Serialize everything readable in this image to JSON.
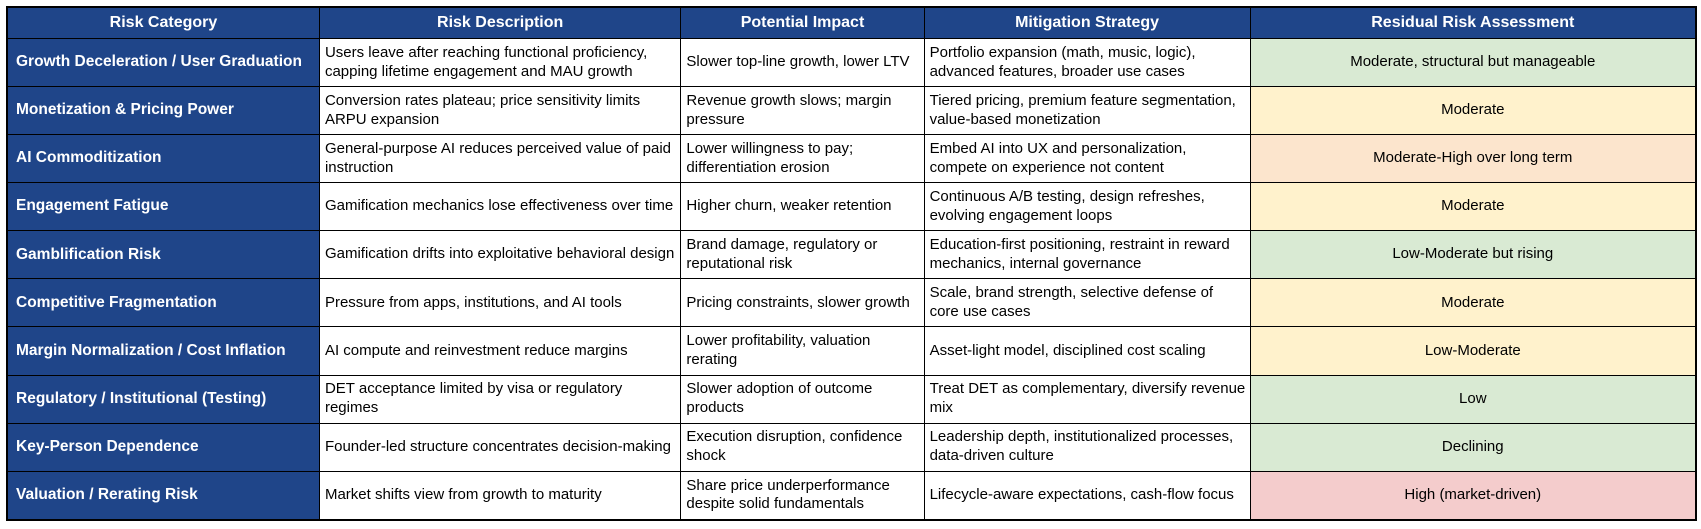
{
  "table": {
    "columns": [
      "Risk Category",
      "Risk Description",
      "Potential Impact",
      "Mitigation Strategy",
      "Residual Risk Assessment"
    ],
    "rows": [
      {
        "category": "Growth Deceleration / User Graduation",
        "description": "Users leave after reaching functional proficiency, capping lifetime engagement and MAU growth",
        "impact": "Slower top-line growth, lower LTV",
        "mitigation": "Portfolio expansion (math, music, logic), advanced features, broader use cases",
        "residual": "Moderate, structural but manageable",
        "residual_color": "green"
      },
      {
        "category": "Monetization & Pricing Power",
        "description": "Conversion rates plateau; price sensitivity limits ARPU expansion",
        "impact": "Revenue growth slows; margin pressure",
        "mitigation": "Tiered pricing, premium feature segmentation, value-based monetization",
        "residual": "Moderate",
        "residual_color": "yellow"
      },
      {
        "category": "AI Commoditization",
        "description": "General-purpose AI reduces perceived value of paid instruction",
        "impact": "Lower willingness to pay; differentiation erosion",
        "mitigation": "Embed AI into UX and personalization, compete on experience not content",
        "residual": "Moderate-High over long term",
        "residual_color": "orange"
      },
      {
        "category": "Engagement Fatigue",
        "description": "Gamification mechanics lose effectiveness over time",
        "impact": "Higher churn, weaker retention",
        "mitigation": "Continuous A/B testing, design refreshes, evolving engagement loops",
        "residual": "Moderate",
        "residual_color": "yellow"
      },
      {
        "category": "Gamblification Risk",
        "description": "Gamification drifts into exploitative behavioral design",
        "impact": "Brand damage, regulatory or reputational risk",
        "mitigation": "Education-first positioning, restraint in reward mechanics, internal governance",
        "residual": "Low-Moderate but rising",
        "residual_color": "green"
      },
      {
        "category": "Competitive Fragmentation",
        "description": "Pressure from apps, institutions, and AI tools",
        "impact": "Pricing constraints, slower growth",
        "mitigation": "Scale, brand strength, selective defense of core use cases",
        "residual": "Moderate",
        "residual_color": "yellow"
      },
      {
        "category": "Margin Normalization / Cost Inflation",
        "description": "AI compute and reinvestment reduce margins",
        "impact": "Lower profitability, valuation rerating",
        "mitigation": "Asset-light model, disciplined cost scaling",
        "residual": "Low-Moderate",
        "residual_color": "yellow"
      },
      {
        "category": "Regulatory / Institutional (Testing)",
        "description": "DET acceptance limited by visa or regulatory regimes",
        "impact": "Slower adoption of outcome products",
        "mitigation": "Treat DET as complementary, diversify revenue mix",
        "residual": "Low",
        "residual_color": "green"
      },
      {
        "category": "Key-Person Dependence",
        "description": "Founder-led structure concentrates decision-making",
        "impact": "Execution disruption, confidence shock",
        "mitigation": "Leadership depth, institutionalized processes, data-driven culture",
        "residual": "Declining",
        "residual_color": "green"
      },
      {
        "category": "Valuation / Rerating Risk",
        "description": "Market shifts view from growth to maturity",
        "impact": "Share price underperformance despite solid fundamentals",
        "mitigation": "Lifecycle-aware expectations, cash-flow focus",
        "residual": "High (market-driven)",
        "residual_color": "red"
      }
    ]
  },
  "colors": {
    "header_bg": "#1f4589",
    "category_bg": "#1f4589",
    "border": "#000000",
    "green": "#d9ead3",
    "yellow": "#fff2cc",
    "orange": "#fce5cd",
    "red": "#f4cccc"
  }
}
